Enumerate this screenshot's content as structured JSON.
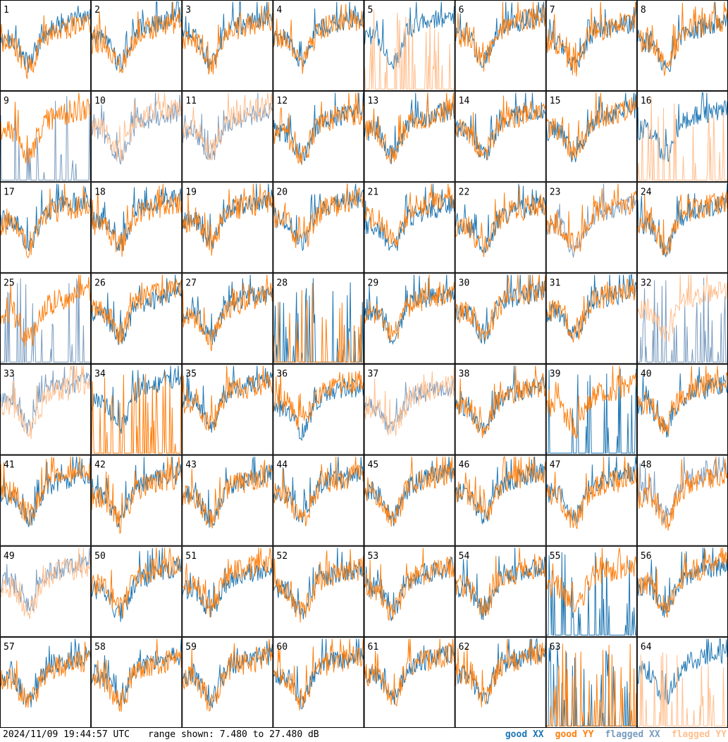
{
  "chart_data": {
    "type": "line",
    "layout_grid": "8x8",
    "panel_count": 64,
    "timestamp": "2024/11/09 19:44:57 UTC",
    "range_text": "range shown: 7.480 to 27.480 dB",
    "ylim": [
      7.48,
      27.48
    ],
    "legend": [
      {
        "label": "good XX",
        "color": "#1f77b4"
      },
      {
        "label": "good YY",
        "color": "#ff7f0e"
      },
      {
        "label": "flagged XX",
        "color": "#7a9cc0"
      },
      {
        "label": "flagged YY",
        "color": "#ffbf8f"
      }
    ],
    "panels": [
      {
        "id": "1",
        "xx": "good",
        "yy": "good"
      },
      {
        "id": "2",
        "xx": "good",
        "yy": "good"
      },
      {
        "id": "3",
        "xx": "good",
        "yy": "good"
      },
      {
        "id": "4",
        "xx": "good",
        "yy": "good"
      },
      {
        "id": "5",
        "xx": "good",
        "yy": "flagged"
      },
      {
        "id": "6",
        "xx": "good",
        "yy": "good"
      },
      {
        "id": "7",
        "xx": "good",
        "yy": "good"
      },
      {
        "id": "8",
        "xx": "good",
        "yy": "good"
      },
      {
        "id": "9",
        "xx": "flagged",
        "yy": "good"
      },
      {
        "id": "10",
        "xx": "flagged",
        "yy": "flagged"
      },
      {
        "id": "11",
        "xx": "flagged",
        "yy": "flagged"
      },
      {
        "id": "12",
        "xx": "good",
        "yy": "good"
      },
      {
        "id": "13",
        "xx": "good",
        "yy": "good"
      },
      {
        "id": "14",
        "xx": "good",
        "yy": "good"
      },
      {
        "id": "15",
        "xx": "good",
        "yy": "good"
      },
      {
        "id": "16",
        "xx": "good",
        "yy": "flagged"
      },
      {
        "id": "17",
        "xx": "good",
        "yy": "good"
      },
      {
        "id": "18",
        "xx": "good",
        "yy": "good"
      },
      {
        "id": "19",
        "xx": "good",
        "yy": "good"
      },
      {
        "id": "20",
        "xx": "good",
        "yy": "good"
      },
      {
        "id": "21",
        "xx": "good",
        "yy": "good"
      },
      {
        "id": "22",
        "xx": "good",
        "yy": "good"
      },
      {
        "id": "23",
        "xx": "flagged",
        "yy": "good"
      },
      {
        "id": "24",
        "xx": "good",
        "yy": "good"
      },
      {
        "id": "25",
        "xx": "flagged",
        "yy": "good"
      },
      {
        "id": "26",
        "xx": "good",
        "yy": "good"
      },
      {
        "id": "27",
        "xx": "good",
        "yy": "good"
      },
      {
        "id": "28",
        "xx": "good",
        "yy": "good"
      },
      {
        "id": "29",
        "xx": "good",
        "yy": "good"
      },
      {
        "id": "30",
        "xx": "good",
        "yy": "good"
      },
      {
        "id": "31",
        "xx": "good",
        "yy": "good"
      },
      {
        "id": "32",
        "xx": "flagged",
        "yy": "flagged"
      },
      {
        "id": "33",
        "xx": "flagged",
        "yy": "flagged"
      },
      {
        "id": "34",
        "xx": "good",
        "yy": "good"
      },
      {
        "id": "35",
        "xx": "good",
        "yy": "good"
      },
      {
        "id": "36",
        "xx": "good",
        "yy": "good"
      },
      {
        "id": "37",
        "xx": "flagged",
        "yy": "flagged"
      },
      {
        "id": "38",
        "xx": "good",
        "yy": "good"
      },
      {
        "id": "39",
        "xx": "good",
        "yy": "good"
      },
      {
        "id": "40",
        "xx": "good",
        "yy": "good"
      },
      {
        "id": "41",
        "xx": "good",
        "yy": "good"
      },
      {
        "id": "42",
        "xx": "good",
        "yy": "good"
      },
      {
        "id": "43",
        "xx": "good",
        "yy": "good"
      },
      {
        "id": "44",
        "xx": "good",
        "yy": "good"
      },
      {
        "id": "45",
        "xx": "good",
        "yy": "good"
      },
      {
        "id": "46",
        "xx": "good",
        "yy": "good"
      },
      {
        "id": "47",
        "xx": "good",
        "yy": "good"
      },
      {
        "id": "48",
        "xx": "flagged",
        "yy": "good"
      },
      {
        "id": "49",
        "xx": "flagged",
        "yy": "flagged"
      },
      {
        "id": "50",
        "xx": "good",
        "yy": "good"
      },
      {
        "id": "51",
        "xx": "good",
        "yy": "good"
      },
      {
        "id": "52",
        "xx": "good",
        "yy": "good"
      },
      {
        "id": "53",
        "xx": "good",
        "yy": "good"
      },
      {
        "id": "54",
        "xx": "good",
        "yy": "good"
      },
      {
        "id": "55",
        "xx": "good",
        "yy": "good"
      },
      {
        "id": "56",
        "xx": "good",
        "yy": "good"
      },
      {
        "id": "57",
        "xx": "good",
        "yy": "good"
      },
      {
        "id": "58",
        "xx": "good",
        "yy": "good"
      },
      {
        "id": "59",
        "xx": "good",
        "yy": "good"
      },
      {
        "id": "60",
        "xx": "good",
        "yy": "good"
      },
      {
        "id": "61",
        "xx": "good",
        "yy": "good"
      },
      {
        "id": "62",
        "xx": "good",
        "yy": "good"
      },
      {
        "id": "63",
        "xx": "good",
        "yy": "good"
      },
      {
        "id": "64",
        "xx": "good",
        "yy": "flagged"
      }
    ]
  }
}
